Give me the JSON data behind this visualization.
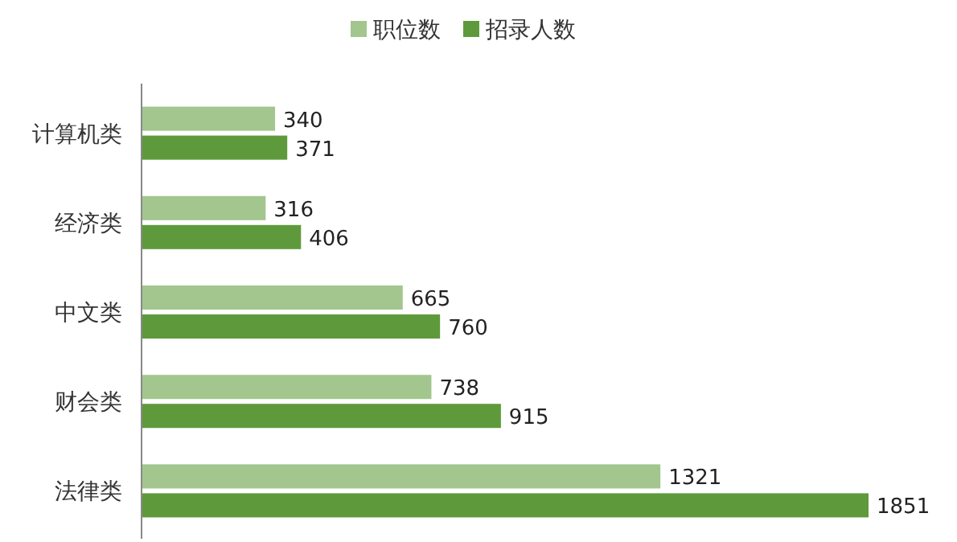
{
  "chart_data": {
    "type": "bar",
    "orientation": "horizontal",
    "categories": [
      "计算机类",
      "经济类",
      "中文类",
      "财会类",
      "法律类"
    ],
    "series": [
      {
        "name": "职位数",
        "color": "#a2c68e",
        "values": [
          340,
          316,
          665,
          738,
          1321
        ]
      },
      {
        "name": "招录人数",
        "color": "#5e9a3c",
        "values": [
          371,
          406,
          760,
          915,
          1851
        ]
      }
    ],
    "data_labels": true,
    "legend": "top"
  }
}
